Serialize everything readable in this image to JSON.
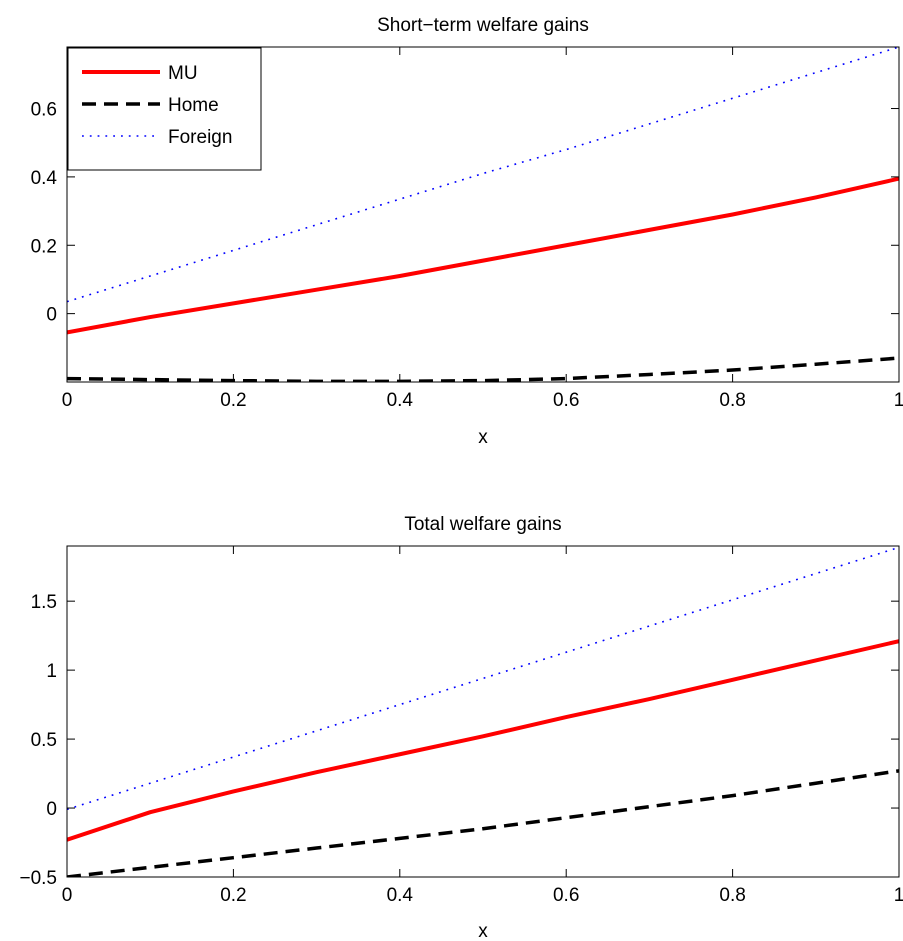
{
  "chart_data": [
    {
      "type": "line",
      "title": "Short−term welfare gains",
      "xlabel": "x",
      "ylabel": "",
      "xlim": [
        0,
        1
      ],
      "ylim": [
        -0.2,
        0.78
      ],
      "xticks": [
        0,
        0.2,
        0.4,
        0.6,
        0.8,
        1
      ],
      "xtick_labels": [
        "0",
        "0.2",
        "0.4",
        "0.6",
        "0.8",
        "1"
      ],
      "yticks": [
        0,
        0.2,
        0.4,
        0.6
      ],
      "ytick_labels": [
        "0",
        "0.2",
        "0.4",
        "0.6"
      ],
      "grid": false,
      "legend_position": "top-left",
      "x": [
        0,
        0.1,
        0.2,
        0.3,
        0.4,
        0.5,
        0.6,
        0.7,
        0.8,
        0.9,
        1
      ],
      "series": [
        {
          "name": "MU",
          "color": "#ff0000",
          "style": "solid",
          "values": [
            -0.055,
            -0.01,
            0.03,
            0.07,
            0.11,
            0.155,
            0.2,
            0.245,
            0.29,
            0.34,
            0.395
          ]
        },
        {
          "name": "Home",
          "color": "#000000",
          "style": "dashed",
          "values": [
            -0.19,
            -0.193,
            -0.196,
            -0.198,
            -0.198,
            -0.196,
            -0.19,
            -0.178,
            -0.165,
            -0.148,
            -0.13
          ]
        },
        {
          "name": "Foreign",
          "color": "#0000ff",
          "style": "dotted",
          "values": [
            0.035,
            0.11,
            0.185,
            0.26,
            0.335,
            0.41,
            0.48,
            0.555,
            0.63,
            0.705,
            0.78
          ]
        }
      ]
    },
    {
      "type": "line",
      "title": "Total welfare gains",
      "xlabel": "x",
      "ylabel": "",
      "xlim": [
        0,
        1
      ],
      "ylim": [
        -0.5,
        1.9
      ],
      "xticks": [
        0,
        0.2,
        0.4,
        0.6,
        0.8,
        1
      ],
      "xtick_labels": [
        "0",
        "0.2",
        "0.4",
        "0.6",
        "0.8",
        "1"
      ],
      "yticks": [
        -0.5,
        0,
        0.5,
        1,
        1.5
      ],
      "ytick_labels": [
        "−0.5",
        "0",
        "0.5",
        "1",
        "1.5"
      ],
      "grid": false,
      "x": [
        0,
        0.1,
        0.2,
        0.3,
        0.4,
        0.5,
        0.6,
        0.7,
        0.8,
        0.9,
        1
      ],
      "series": [
        {
          "name": "MU",
          "color": "#ff0000",
          "style": "solid",
          "values": [
            -0.23,
            -0.03,
            0.12,
            0.26,
            0.39,
            0.52,
            0.66,
            0.79,
            0.93,
            1.07,
            1.21
          ]
        },
        {
          "name": "Home",
          "color": "#000000",
          "style": "dashed",
          "values": [
            -0.5,
            -0.43,
            -0.36,
            -0.29,
            -0.22,
            -0.15,
            -0.07,
            0.01,
            0.09,
            0.18,
            0.27
          ]
        },
        {
          "name": "Foreign",
          "color": "#0000ff",
          "style": "dotted",
          "values": [
            -0.01,
            0.18,
            0.37,
            0.56,
            0.75,
            0.94,
            1.13,
            1.32,
            1.51,
            1.7,
            1.89
          ]
        }
      ]
    }
  ]
}
